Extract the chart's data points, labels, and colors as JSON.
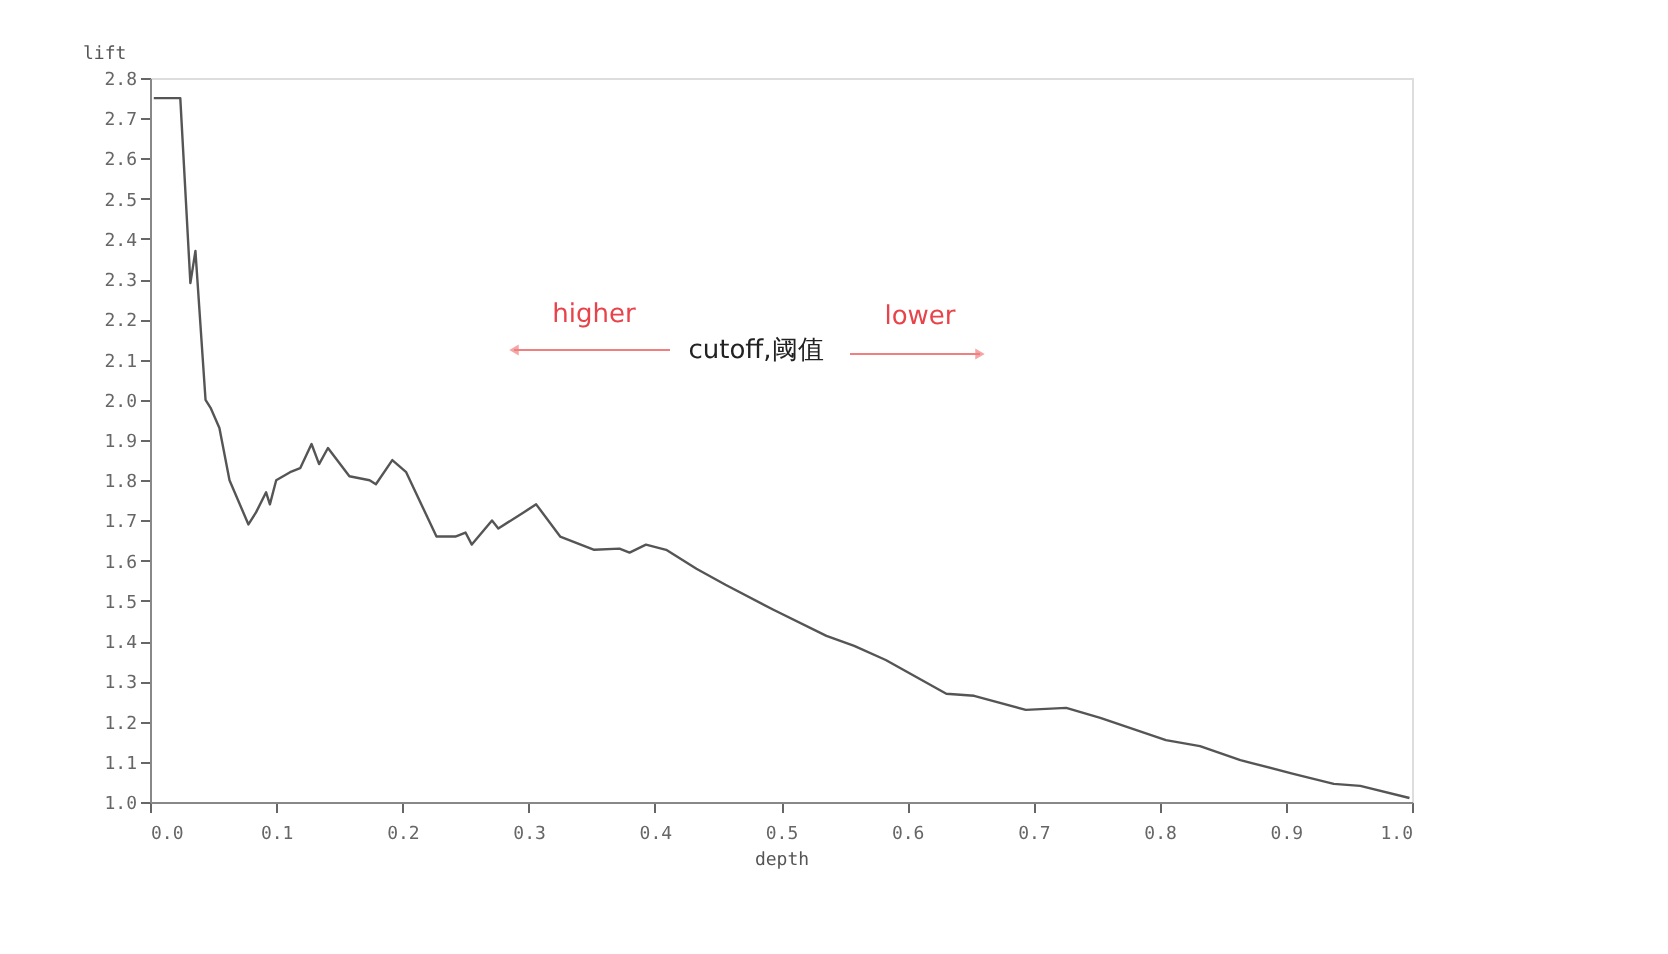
{
  "chart_data": {
    "type": "line",
    "xlabel": "depth",
    "ylabel": "lift",
    "annotations": [
      "higher",
      "cutoff,阈值",
      "lower"
    ],
    "x": [
      0.003,
      0.024,
      0.032,
      0.036,
      0.044,
      0.048,
      0.055,
      0.063,
      0.078,
      0.084,
      0.092,
      0.095,
      0.1,
      0.111,
      0.119,
      0.128,
      0.134,
      0.141,
      0.158,
      0.174,
      0.179,
      0.192,
      0.203,
      0.227,
      0.242,
      0.25,
      0.255,
      0.271,
      0.276,
      0.296,
      0.306,
      0.325,
      0.352,
      0.372,
      0.38,
      0.393,
      0.409,
      0.433,
      0.456,
      0.494,
      0.536,
      0.558,
      0.583,
      0.631,
      0.653,
      0.694,
      0.726,
      0.753,
      0.805,
      0.832,
      0.864,
      0.906,
      0.938,
      0.959,
      0.998
    ],
    "series": [
      {
        "color": "#555555",
        "values": [
          2.75,
          2.75,
          2.29,
          2.37,
          2.0,
          1.98,
          1.93,
          1.8,
          1.69,
          1.72,
          1.77,
          1.74,
          1.8,
          1.82,
          1.83,
          1.89,
          1.84,
          1.88,
          1.81,
          1.8,
          1.79,
          1.85,
          1.82,
          1.66,
          1.66,
          1.67,
          1.64,
          1.7,
          1.68,
          1.72,
          1.74,
          1.66,
          1.627,
          1.63,
          1.62,
          1.64,
          1.627,
          1.58,
          1.54,
          1.478,
          1.413,
          1.388,
          1.353,
          1.269,
          1.264,
          1.229,
          1.234,
          1.209,
          1.154,
          1.139,
          1.104,
          1.07,
          1.045,
          1.04,
          1.01
        ]
      }
    ],
    "xlim": [
      0.0,
      1.0
    ],
    "xticks": [
      {
        "value": 0,
        "label": "0.0"
      },
      0.1,
      0.2,
      0.3,
      0.4,
      0.5,
      0.6,
      0.7,
      0.8,
      0.9,
      {
        "value": 1,
        "label": "1.0"
      }
    ],
    "ylim": [
      1.0,
      2.8
    ],
    "yticks": [
      {
        "value": 1,
        "label": "1.0"
      },
      1.1,
      1.2,
      1.3,
      1.4,
      1.5,
      1.6,
      1.7,
      1.8,
      1.9,
      {
        "value": 2,
        "label": "2.0"
      },
      2.1,
      2.2,
      2.3,
      2.4,
      2.5,
      2.6,
      2.7,
      2.8
    ],
    "grid": false,
    "legend": false,
    "marker": "none",
    "line_style": "solid"
  }
}
